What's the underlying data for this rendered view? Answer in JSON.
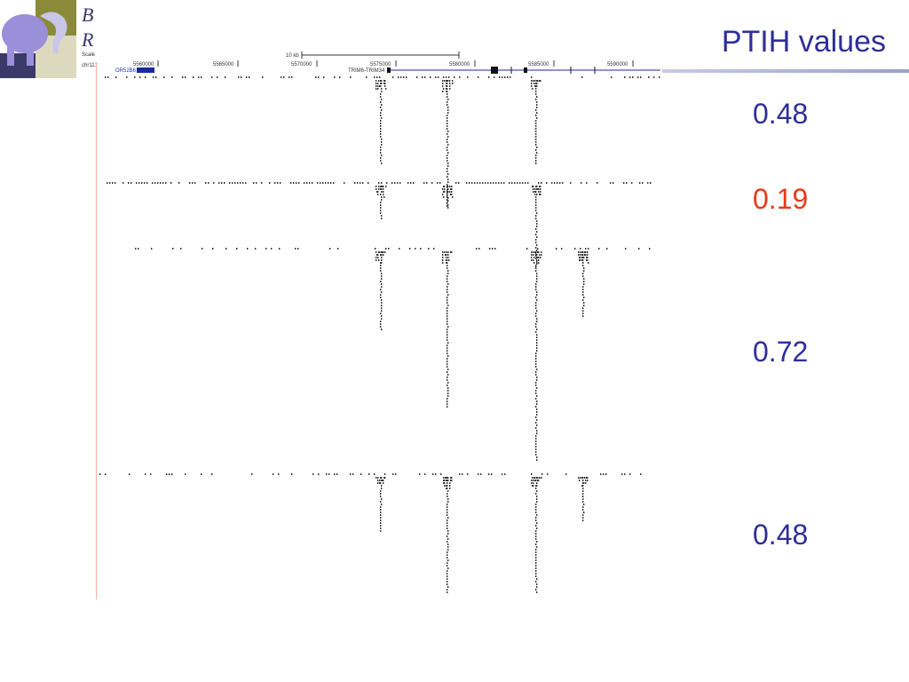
{
  "title": "PTIH values",
  "logo": {
    "letter_top": "B",
    "letter_bottom": "R"
  },
  "ptih_values": [
    "0.48",
    "0.19",
    "0.72",
    "0.48"
  ],
  "browser": {
    "scale_label": "Scale",
    "chrom_label": "chr11:",
    "scalebar_label": "10 kb",
    "positions": [
      "5560000",
      "5565000",
      "5570000",
      "5575000",
      "5580000",
      "5585000",
      "5590000"
    ],
    "gene_or": "OR52B6",
    "gene_trim": "TRIM6-TRIM34"
  },
  "colors": {
    "title": "#2e2e9a",
    "low_value": "#e8391a",
    "guide": "#f0b08f"
  }
}
